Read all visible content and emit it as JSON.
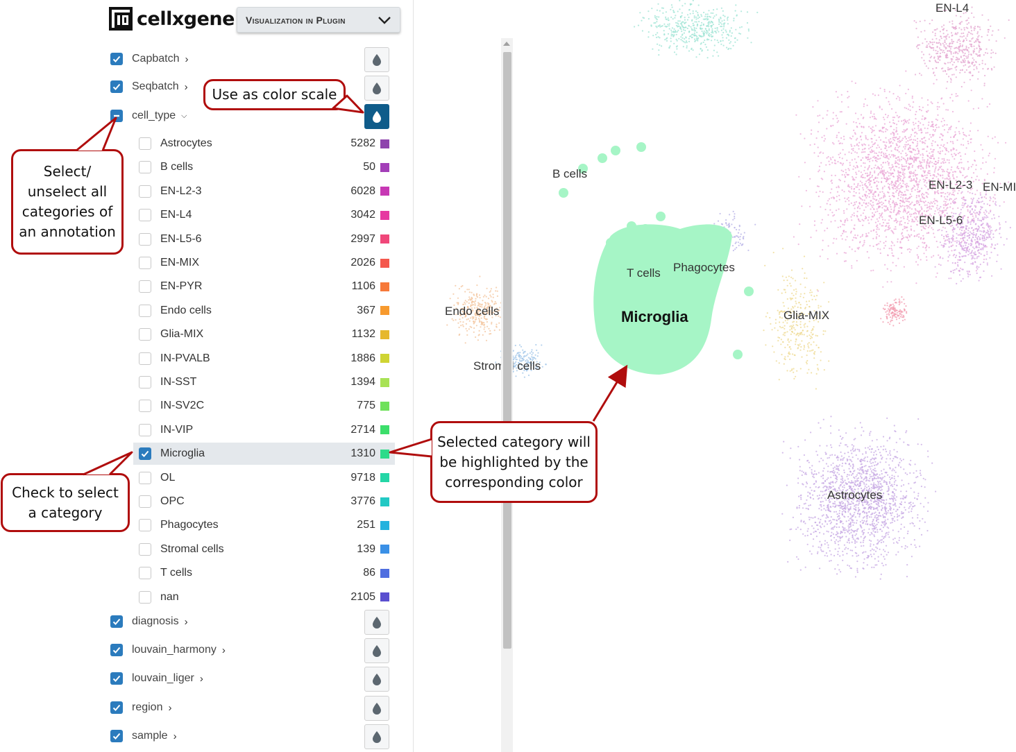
{
  "app": {
    "name": "cellxgene",
    "mode_dropdown": "Visualization in Plugin"
  },
  "annotations_top": [
    {
      "name": "Capbatch",
      "checked": true
    },
    {
      "name": "Seqbatch",
      "checked": true
    },
    {
      "name": "cell_type",
      "checked": "indeterminate",
      "expanded": true,
      "color_scale_active": true
    }
  ],
  "categories": [
    {
      "label": "Astrocytes",
      "count": "5282",
      "color": "#8e44ad",
      "checked": false
    },
    {
      "label": "B cells",
      "count": "50",
      "color": "#a33fb8",
      "checked": false
    },
    {
      "label": "EN-L2-3",
      "count": "6028",
      "color": "#c738b4",
      "checked": false
    },
    {
      "label": "EN-L4",
      "count": "3042",
      "color": "#e63aa1",
      "checked": false
    },
    {
      "label": "EN-L5-6",
      "count": "2997",
      "color": "#f0477a",
      "checked": false
    },
    {
      "label": "EN-MIX",
      "count": "2026",
      "color": "#f4584d",
      "checked": false
    },
    {
      "label": "EN-PYR",
      "count": "1106",
      "color": "#f6793a",
      "checked": false
    },
    {
      "label": "Endo cells",
      "count": "367",
      "color": "#f79a2e",
      "checked": false
    },
    {
      "label": "Glia-MIX",
      "count": "1132",
      "color": "#e6b82e",
      "checked": false
    },
    {
      "label": "IN-PVALB",
      "count": "1886",
      "color": "#cfd433",
      "checked": false
    },
    {
      "label": "IN-SST",
      "count": "1394",
      "color": "#a8e255",
      "checked": false
    },
    {
      "label": "IN-SV2C",
      "count": "775",
      "color": "#6fe15b",
      "checked": false
    },
    {
      "label": "IN-VIP",
      "count": "2714",
      "color": "#3cde6b",
      "checked": false
    },
    {
      "label": "Microglia",
      "count": "1310",
      "color": "#2ddb8a",
      "checked": true
    },
    {
      "label": "OL",
      "count": "9718",
      "color": "#24d6a6",
      "checked": false
    },
    {
      "label": "OPC",
      "count": "3776",
      "color": "#22c9c4",
      "checked": false
    },
    {
      "label": "Phagocytes",
      "count": "251",
      "color": "#23b2de",
      "checked": false
    },
    {
      "label": "Stromal cells",
      "count": "139",
      "color": "#3a90e6",
      "checked": false
    },
    {
      "label": "T cells",
      "count": "86",
      "color": "#4f6ee0",
      "checked": false
    },
    {
      "label": "nan",
      "count": "2105",
      "color": "#5a4fcf",
      "checked": false
    }
  ],
  "annotations_bottom": [
    {
      "name": "diagnosis",
      "checked": true
    },
    {
      "name": "louvain_harmony",
      "checked": true
    },
    {
      "name": "louvain_liger",
      "checked": true
    },
    {
      "name": "region",
      "checked": true
    },
    {
      "name": "sample",
      "checked": true
    }
  ],
  "plot_labels": [
    "EN-L4",
    "B cells",
    "EN-L2-3",
    "EN-MIX",
    "EN-L5-6",
    "T cells",
    "Phagocytes",
    "Microglia",
    "Endo cells",
    "Glia-MIX",
    "Stromal cells",
    "Astrocytes"
  ],
  "callouts": {
    "color_scale": "Use as color scale",
    "select_all": [
      "Select/",
      "unselect all",
      "categories of",
      "an annotation"
    ],
    "check_select": [
      "Check to select",
      "a category"
    ],
    "highlight": [
      "Selected category will",
      "be highlighted by the",
      "corresponding color"
    ]
  },
  "colors": {
    "accent_blue": "#2b7bbd",
    "active_button": "#0f5c8a",
    "callout_red": "#b00d0d",
    "microglia_highlight": "#a6f5c6"
  }
}
